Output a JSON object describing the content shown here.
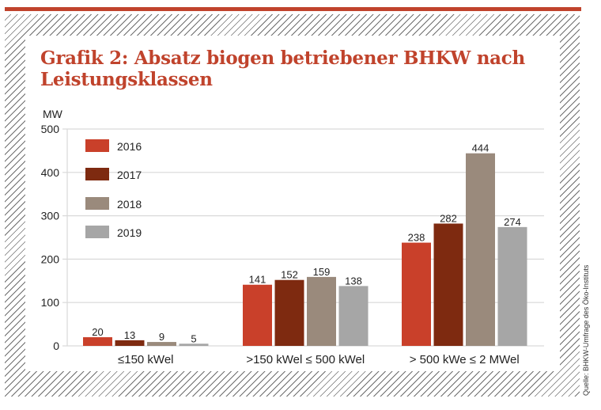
{
  "colors": {
    "accent": "#c0432c",
    "series": [
      "#c9402a",
      "#7e2a10",
      "#9a8a7c",
      "#a6a6a6"
    ],
    "grid": "#d9d9d9",
    "text": "#222222"
  },
  "source": "Quelle: BHKW-Umfrage des Öko-Instituts",
  "chart_data": {
    "type": "bar",
    "title": "Grafik 2: Absatz biogen betriebener BHKW nach Leistungsklassen",
    "title_lines": [
      "Grafik 2: Absatz biogen betriebener BHKW nach",
      "Leistungsklassen"
    ],
    "ylabel": "MW",
    "xlabel": "",
    "ylim": [
      0,
      500
    ],
    "yticks": [
      "0",
      "100",
      "200",
      "300",
      "400",
      "500"
    ],
    "grid": true,
    "legend_position": "top-left",
    "categories": [
      "≤150 kWel",
      ">150 kWel ≤ 500 kWel",
      "> 500 kWe ≤ 2 MWel"
    ],
    "series": [
      {
        "name": "2016",
        "values": [
          20,
          141,
          238
        ]
      },
      {
        "name": "2017",
        "values": [
          13,
          152,
          282
        ]
      },
      {
        "name": "2018",
        "values": [
          9,
          159,
          444
        ]
      },
      {
        "name": "2019",
        "values": [
          5,
          138,
          274
        ]
      }
    ]
  }
}
